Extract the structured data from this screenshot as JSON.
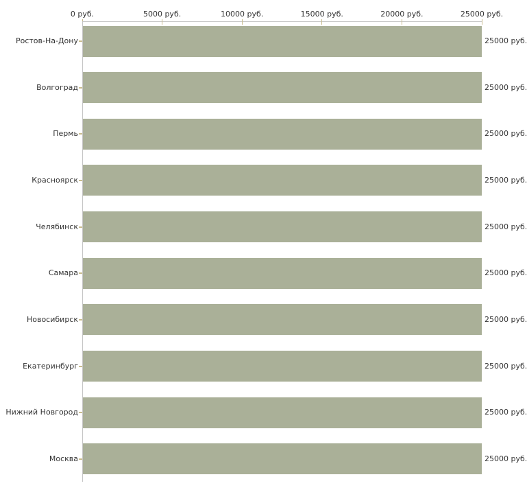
{
  "chart_data": {
    "type": "bar",
    "orientation": "horizontal",
    "title": "",
    "xlabel": "руб.",
    "ylabel": "",
    "xlim": [
      0,
      25000
    ],
    "grid": false,
    "legend": "none",
    "categories": [
      "Ростов-На-Дону",
      "Волгоград",
      "Пермь",
      "Красноярск",
      "Челябинск",
      "Самара",
      "Новосибирск",
      "Екатеринбург",
      "Нижний Новгород",
      "Москва"
    ],
    "values": [
      25000,
      25000,
      25000,
      25000,
      25000,
      25000,
      25000,
      25000,
      25000,
      25000
    ],
    "value_labels": [
      "25000 руб.",
      "25000 руб.",
      "25000 руб.",
      "25000 руб.",
      "25000 руб.",
      "25000 руб.",
      "25000 руб.",
      "25000 руб.",
      "25000 руб.",
      "25000 руб."
    ],
    "x_tick_values": [
      0,
      5000,
      10000,
      15000,
      20000,
      25000
    ],
    "x_tick_labels": [
      "0 руб.",
      "5000 руб.",
      "10000 руб.",
      "15000 руб.",
      "20000 руб.",
      "25000 руб."
    ],
    "colors": {
      "bar": "#aab098",
      "axis_line": "#c6c6c6",
      "tick_mark": "#c9bc8e",
      "text": "#333333",
      "background": "#ffffff"
    }
  }
}
